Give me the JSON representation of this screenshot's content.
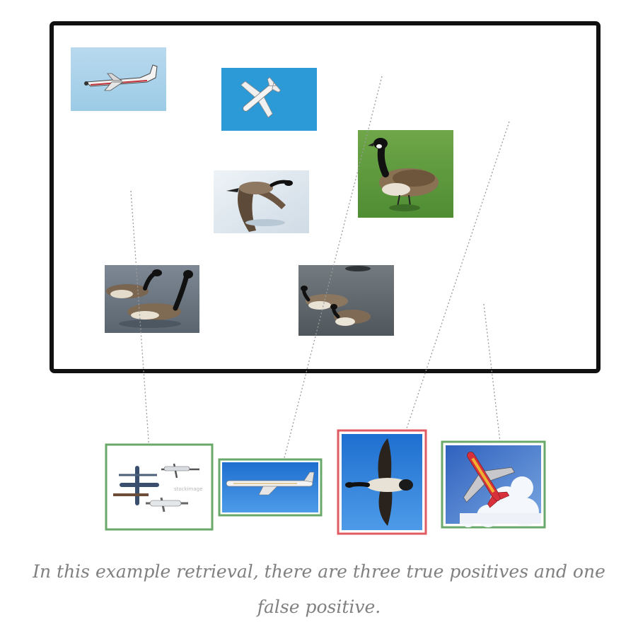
{
  "figure": {
    "caption": "In this example retrieval, there are three true positives and one false positive.",
    "colors": {
      "true_positive_border": "#6aa86a",
      "false_positive_border": "#e05a62",
      "frame": "#111111",
      "link_line": "#9a9a9a",
      "caption_text": "#808080"
    },
    "database_images": [
      {
        "id": "db-airplane-1",
        "subject": "airplane",
        "scene": "propeller plane in pale sky"
      },
      {
        "id": "db-airplane-2",
        "subject": "airplane",
        "scene": "small plane against blue sky"
      },
      {
        "id": "db-goose-grass",
        "subject": "goose",
        "scene": "goose standing on grass"
      },
      {
        "id": "db-goose-flying",
        "subject": "goose",
        "scene": "goose flying over snow"
      },
      {
        "id": "db-geese-water-1",
        "subject": "goose",
        "scene": "two geese on water"
      },
      {
        "id": "db-geese-water-2",
        "subject": "goose",
        "scene": "geese swimming"
      }
    ],
    "retrieved_results": [
      {
        "rank": 1,
        "subject": "airplane",
        "scene": "collage of planes",
        "label": "true positive"
      },
      {
        "rank": 2,
        "subject": "airplane",
        "scene": "jet airliner in blue sky",
        "label": "true positive"
      },
      {
        "rank": 3,
        "subject": "goose",
        "scene": "goose flying in blue sky",
        "label": "false positive"
      },
      {
        "rank": 4,
        "subject": "airplane",
        "scene": "red jet among clouds",
        "label": "true positive"
      }
    ]
  }
}
